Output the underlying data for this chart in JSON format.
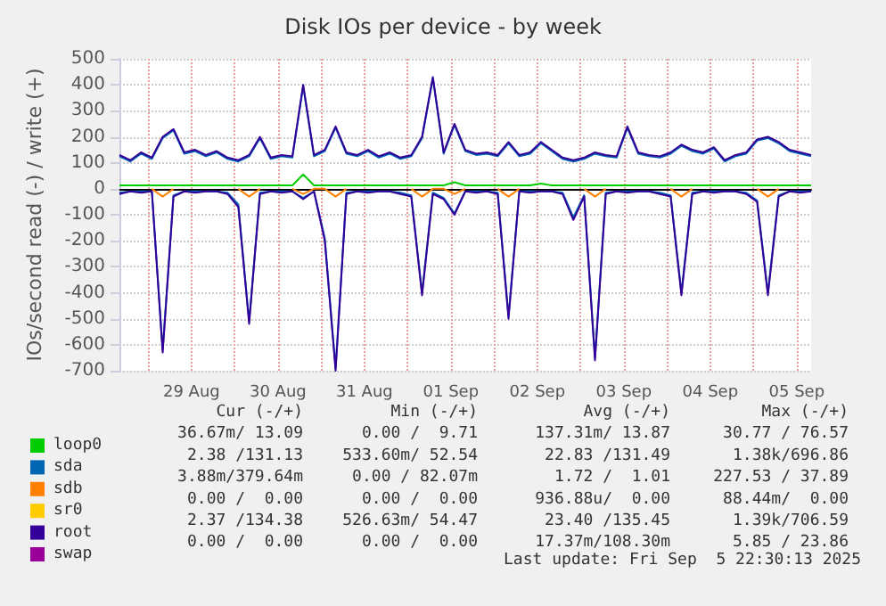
{
  "chart_data": {
    "type": "line",
    "title": "Disk IOs per device - by week",
    "ylabel": "IOs/second read (-) / write (+)",
    "x": [
      "2025-08-28T16:00",
      "2025-08-28T19:00",
      "2025-08-28T22:00",
      "2025-08-29T01:00",
      "2025-08-29T04:00",
      "2025-08-29T07:00",
      "2025-08-29T10:00",
      "2025-08-29T13:00",
      "2025-08-29T16:00",
      "2025-08-29T19:00",
      "2025-08-29T22:00",
      "2025-08-30T01:00",
      "2025-08-30T04:00",
      "2025-08-30T07:00",
      "2025-08-30T10:00",
      "2025-08-30T13:00",
      "2025-08-30T16:00",
      "2025-08-30T19:00",
      "2025-08-30T22:00",
      "2025-08-31T01:00",
      "2025-08-31T04:00",
      "2025-08-31T07:00",
      "2025-08-31T10:00",
      "2025-08-31T13:00",
      "2025-08-31T16:00",
      "2025-08-31T19:00",
      "2025-08-31T22:00",
      "2025-09-01T01:00",
      "2025-09-01T04:00",
      "2025-09-01T07:00",
      "2025-09-01T10:00",
      "2025-09-01T13:00",
      "2025-09-01T16:00",
      "2025-09-01T19:00",
      "2025-09-01T22:00",
      "2025-09-02T01:00",
      "2025-09-02T04:00",
      "2025-09-02T07:00",
      "2025-09-02T10:00",
      "2025-09-02T13:00",
      "2025-09-02T16:00",
      "2025-09-02T19:00",
      "2025-09-02T22:00",
      "2025-09-03T01:00",
      "2025-09-03T04:00",
      "2025-09-03T07:00",
      "2025-09-03T10:00",
      "2025-09-03T13:00",
      "2025-09-03T16:00",
      "2025-09-03T19:00",
      "2025-09-03T22:00",
      "2025-09-04T01:00",
      "2025-09-04T04:00",
      "2025-09-04T07:00",
      "2025-09-04T10:00",
      "2025-09-04T13:00",
      "2025-09-04T16:00",
      "2025-09-04T19:00",
      "2025-09-04T22:00",
      "2025-09-05T01:00",
      "2025-09-05T04:00",
      "2025-09-05T07:00",
      "2025-09-05T10:00",
      "2025-09-05T13:00",
      "2025-09-05T16:00"
    ],
    "xlim": [
      "2025-08-28T16:00",
      "2025-09-05T16:00"
    ],
    "xticks": [
      {
        "value": "2025-08-29T00:00",
        "label": null
      },
      {
        "value": "2025-08-29T12:00",
        "label": "29 Aug"
      },
      {
        "value": "2025-08-30T00:00",
        "label": null
      },
      {
        "value": "2025-08-30T12:00",
        "label": "30 Aug"
      },
      {
        "value": "2025-08-31T00:00",
        "label": null
      },
      {
        "value": "2025-08-31T12:00",
        "label": "31 Aug"
      },
      {
        "value": "2025-09-01T00:00",
        "label": null
      },
      {
        "value": "2025-09-01T12:00",
        "label": "01 Sep"
      },
      {
        "value": "2025-09-02T00:00",
        "label": null
      },
      {
        "value": "2025-09-02T12:00",
        "label": "02 Sep"
      },
      {
        "value": "2025-09-03T00:00",
        "label": null
      },
      {
        "value": "2025-09-03T12:00",
        "label": "03 Sep"
      },
      {
        "value": "2025-09-04T00:00",
        "label": null
      },
      {
        "value": "2025-09-04T12:00",
        "label": "04 Sep"
      },
      {
        "value": "2025-09-05T00:00",
        "label": null
      },
      {
        "value": "2025-09-05T12:00",
        "label": "05 Sep"
      }
    ],
    "ylim": [
      -700,
      500
    ],
    "yticks": [
      -700,
      -600,
      -500,
      -400,
      -300,
      -200,
      -100,
      0,
      100,
      200,
      300,
      400,
      500
    ],
    "grid": true,
    "legend": "bottom left",
    "marker": "none",
    "series": [
      {
        "name": "loop0",
        "color": "#00cc00",
        "values": [
          13,
          13,
          13,
          13,
          13,
          13,
          13,
          13,
          13,
          13,
          13,
          13,
          13,
          13,
          13,
          13,
          13,
          55,
          13,
          13,
          13,
          13,
          13,
          13,
          13,
          13,
          13,
          13,
          13,
          13,
          13,
          25,
          13,
          13,
          13,
          13,
          13,
          13,
          13,
          20,
          13,
          13,
          13,
          13,
          13,
          13,
          13,
          13,
          13,
          13,
          13,
          13,
          13,
          13,
          13,
          13,
          13,
          13,
          13,
          13,
          13,
          13,
          13,
          13,
          13
        ]
      },
      {
        "name": "sda",
        "color": "#0066b3",
        "values": [
          125,
          105,
          135,
          115,
          195,
          225,
          135,
          145,
          125,
          140,
          115,
          105,
          125,
          195,
          115,
          125,
          120,
          395,
          125,
          145,
          235,
          135,
          125,
          145,
          120,
          135,
          115,
          125,
          195,
          425,
          135,
          245,
          145,
          130,
          135,
          125,
          175,
          125,
          135,
          175,
          145,
          115,
          105,
          115,
          135,
          125,
          120,
          235,
          135,
          125,
          120,
          135,
          165,
          145,
          135,
          155,
          105,
          125,
          135,
          185,
          195,
          175,
          145,
          135,
          125
        ]
      },
      {
        "color": "#0066b3",
        "values": [
          -15,
          -10,
          -10,
          -10,
          -620,
          -25,
          -10,
          -10,
          -10,
          -10,
          -15,
          -60,
          -510,
          -15,
          -10,
          -10,
          -10,
          -35,
          -10,
          -190,
          -690,
          -15,
          -10,
          -10,
          -10,
          -10,
          -15,
          -25,
          -400,
          -15,
          -35,
          -95,
          -10,
          -10,
          -10,
          -15,
          -490,
          -10,
          -10,
          -10,
          -10,
          -15,
          -110,
          -25,
          -650,
          -15,
          -10,
          -10,
          -10,
          -10,
          -15,
          -25,
          -400,
          -15,
          -10,
          -10,
          -10,
          -10,
          -15,
          -45,
          -400,
          -25,
          -10,
          -10,
          -10
        ]
      },
      {
        "name": "sdb",
        "color": "#ff8000",
        "values": [
          null,
          null,
          null,
          0,
          -30,
          0,
          null,
          null,
          null,
          null,
          null,
          0,
          -30,
          0,
          null,
          null,
          0,
          -20,
          0,
          0,
          -30,
          0,
          null,
          null,
          null,
          null,
          null,
          0,
          -30,
          0,
          0,
          -20,
          0,
          null,
          null,
          0,
          -30,
          0,
          null,
          null,
          null,
          null,
          null,
          0,
          -30,
          0,
          null,
          null,
          null,
          null,
          null,
          0,
          -30,
          0,
          null,
          null,
          null,
          null,
          null,
          0,
          -30,
          0,
          null,
          null,
          null
        ]
      },
      {
        "name": "sr0",
        "color": "#ffcc00",
        "values": [
          null,
          null,
          null,
          null,
          null,
          null,
          null,
          null,
          null,
          null,
          null,
          null,
          null,
          null,
          null,
          null,
          null,
          null,
          null,
          null,
          null,
          null,
          null,
          null,
          null,
          null,
          null,
          null,
          null,
          null,
          null,
          null,
          null,
          null,
          null,
          null,
          null,
          null,
          null,
          null,
          null,
          null,
          null,
          null,
          null,
          null,
          null,
          null,
          null,
          null,
          null,
          null,
          null,
          null,
          null,
          null,
          null,
          null,
          null,
          null,
          null,
          null,
          null,
          null,
          null
        ]
      },
      {
        "name": "root",
        "color": "#330099",
        "values": [
          130,
          110,
          140,
          120,
          200,
          230,
          140,
          150,
          130,
          145,
          120,
          110,
          130,
          200,
          120,
          130,
          125,
          400,
          130,
          150,
          240,
          140,
          130,
          150,
          125,
          140,
          120,
          130,
          200,
          430,
          140,
          250,
          150,
          135,
          140,
          130,
          180,
          130,
          140,
          180,
          150,
          120,
          110,
          120,
          140,
          130,
          125,
          240,
          140,
          130,
          125,
          140,
          170,
          150,
          140,
          160,
          110,
          130,
          140,
          190,
          200,
          180,
          150,
          140,
          130
        ]
      },
      {
        "color": "#330099",
        "values": [
          -20,
          -10,
          -15,
          -10,
          -630,
          -30,
          -10,
          -15,
          -10,
          -10,
          -20,
          -70,
          -520,
          -20,
          -10,
          -15,
          -10,
          -40,
          -10,
          -200,
          -700,
          -20,
          -10,
          -15,
          -10,
          -10,
          -20,
          -30,
          -410,
          -20,
          -40,
          -100,
          -10,
          -15,
          -10,
          -20,
          -500,
          -10,
          -15,
          -10,
          -10,
          -20,
          -120,
          -30,
          -660,
          -20,
          -10,
          -15,
          -10,
          -10,
          -20,
          -30,
          -410,
          -20,
          -10,
          -15,
          -10,
          -10,
          -20,
          -50,
          -410,
          -30,
          -10,
          -15,
          -10
        ]
      },
      {
        "name": "swap",
        "color": "#990099",
        "values": [
          null,
          null,
          null,
          null,
          null,
          null,
          null,
          null,
          null,
          null,
          null,
          null,
          null,
          null,
          null,
          null,
          null,
          null,
          null,
          null,
          null,
          null,
          null,
          null,
          null,
          null,
          null,
          null,
          null,
          null,
          null,
          null,
          null,
          null,
          null,
          null,
          null,
          null,
          null,
          null,
          null,
          null,
          null,
          null,
          null,
          null,
          null,
          null,
          null,
          null,
          null,
          null,
          null,
          null,
          null,
          null,
          null,
          null,
          null,
          null,
          null,
          null,
          null,
          null,
          null
        ]
      }
    ],
    "annotations": [
      "Cur (-/+)",
      "Min (-/+)",
      "Avg (-/+)",
      "Max (-/+)",
      "36.67m/ 13.09",
      "0.00 /  9.71",
      "137.31m/ 13.87",
      "30.77 / 76.57",
      "2.38 /131.13",
      "533.60m/ 52.54",
      "22.83 /131.49",
      "1.38k/696.86",
      "3.88m/379.64m",
      "0.00 / 82.07m",
      "1.72 /  1.01",
      "227.53 / 37.89",
      "0.00 /  0.00",
      "0.00 /  0.00",
      "936.88u/  0.00",
      "88.44m/  0.00",
      "2.37 /134.38",
      "526.63m/ 54.47",
      "23.40 /135.45",
      "1.39k/706.59",
      "0.00 /  0.00",
      "0.00 /  0.00",
      "17.37m/108.30m",
      "5.85 / 23.86",
      "Last update: Fri Sep  5 22:30:13 2025"
    ]
  }
}
